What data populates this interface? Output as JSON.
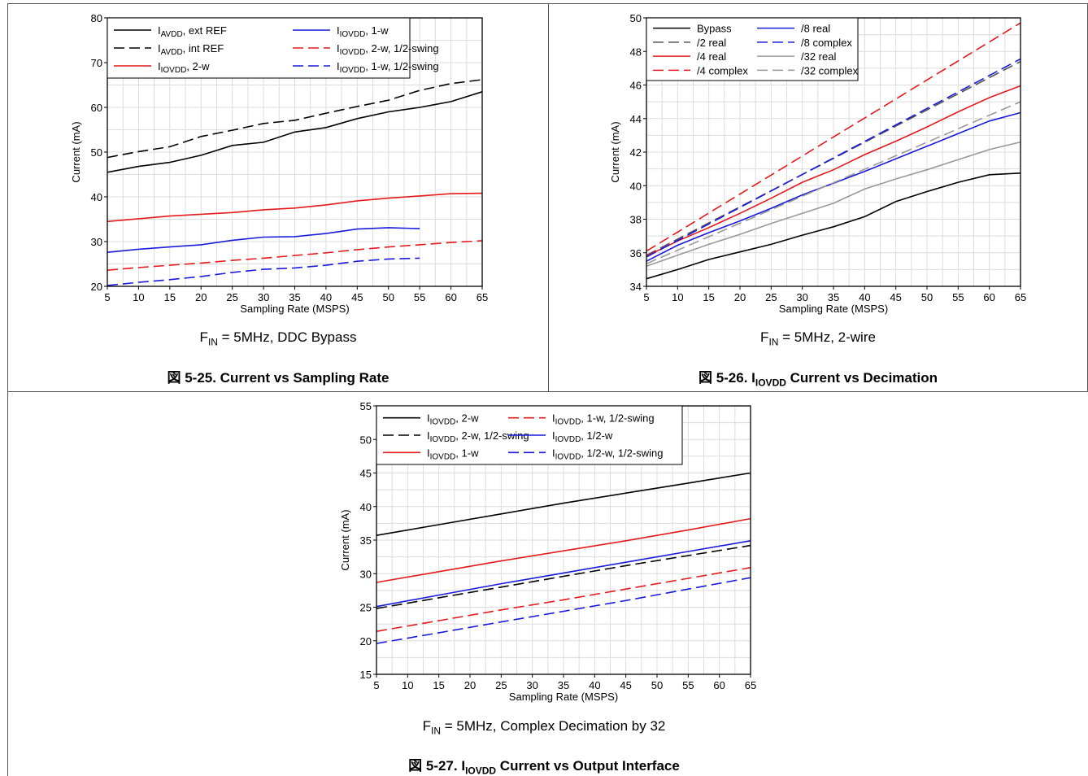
{
  "panels": [
    {
      "condition": {
        "pre": "F",
        "sub": "IN",
        "post": " = 5MHz, DDC Bypass"
      },
      "caption": {
        "pre": "図 5-25. Current vs Sampling Rate",
        "sub": "",
        "post": ""
      }
    },
    {
      "condition": {
        "pre": "F",
        "sub": "IN",
        "post": " = 5MHz, 2-wire"
      },
      "caption": {
        "pre": "図 5-26. I",
        "sub": "IOVDD",
        "post": " Current vs Decimation"
      }
    },
    {
      "condition": {
        "pre": "F",
        "sub": "IN",
        "post": " = 5MHz, Complex Decimation by 32"
      },
      "caption": {
        "pre": "図 5-27. I",
        "sub": "IOVDD",
        "post": " Current vs Output Interface"
      }
    }
  ],
  "chart_data": [
    {
      "type": "line",
      "xlabel": "Sampling Rate (MSPS)",
      "ylabel": "Current (mA)",
      "xlim": [
        5,
        65
      ],
      "ylim": [
        20,
        80
      ],
      "xticks": [
        5,
        10,
        15,
        20,
        25,
        30,
        35,
        40,
        45,
        50,
        55,
        60,
        65
      ],
      "yticks": [
        20,
        30,
        40,
        50,
        60,
        70,
        80
      ],
      "grid": true,
      "legend_position": "top-left",
      "legend_columns": 2,
      "series": [
        {
          "legend": {
            "main": "I",
            "sub": "AVDD",
            "rest": ", ext REF"
          },
          "color": "#000000",
          "dash": false,
          "x": [
            5,
            10,
            15,
            20,
            25,
            30,
            35,
            40,
            45,
            50,
            55,
            60,
            65
          ],
          "y": [
            45.5,
            46.8,
            47.7,
            49.3,
            51.5,
            52.2,
            54.5,
            55.5,
            57.5,
            59,
            60,
            61.3,
            63.5
          ]
        },
        {
          "legend": {
            "main": "I",
            "sub": "AVDD",
            "rest": ", int REF"
          },
          "color": "#000000",
          "dash": true,
          "x": [
            5,
            10,
            15,
            20,
            25,
            30,
            35,
            40,
            45,
            50,
            55,
            60,
            65
          ],
          "y": [
            48.8,
            50.1,
            51.2,
            53.5,
            54.9,
            56.4,
            57.1,
            58.7,
            60.2,
            61.6,
            63.8,
            65.3,
            66.2
          ]
        },
        {
          "legend": {
            "main": "I",
            "sub": "IOVDD",
            "rest": ", 2-w"
          },
          "color": "#e41a1c",
          "dash": false,
          "x": [
            5,
            10,
            15,
            20,
            25,
            30,
            35,
            40,
            45,
            50,
            55,
            60,
            65
          ],
          "y": [
            34.5,
            35.1,
            35.7,
            36.1,
            36.5,
            37.1,
            37.5,
            38.2,
            39.1,
            39.7,
            40.2,
            40.7,
            40.8
          ]
        },
        {
          "legend": {
            "main": "I",
            "sub": "IOVDD",
            "rest": ", 1-w"
          },
          "color": "#1a1adb",
          "dash": false,
          "x": [
            5,
            10,
            15,
            20,
            25,
            30,
            35,
            40,
            45,
            50,
            55
          ],
          "y": [
            27.6,
            28.3,
            28.8,
            29.3,
            30.3,
            31,
            31.1,
            31.8,
            32.8,
            33.1,
            32.9
          ]
        },
        {
          "legend": {
            "main": "I",
            "sub": "IOVDD",
            "rest": ", 2-w, 1/2-swing"
          },
          "color": "#e41a1c",
          "dash": true,
          "x": [
            5,
            10,
            15,
            20,
            25,
            30,
            35,
            40,
            45,
            50,
            55,
            60,
            65
          ],
          "y": [
            23.6,
            24.2,
            24.7,
            25.2,
            25.8,
            26.3,
            26.9,
            27.5,
            28.2,
            28.8,
            29.3,
            29.8,
            30.2
          ]
        },
        {
          "legend": {
            "main": "I",
            "sub": "IOVDD",
            "rest": ", 1-w, 1/2-swing"
          },
          "color": "#1a1adb",
          "dash": true,
          "x": [
            5,
            10,
            15,
            20,
            25,
            30,
            35,
            40,
            45,
            50,
            55
          ],
          "y": [
            20.2,
            20.9,
            21.5,
            22.2,
            23.1,
            23.8,
            24.1,
            24.7,
            25.6,
            26.1,
            26.3
          ]
        }
      ]
    },
    {
      "type": "line",
      "xlabel": "Sampling Rate (MSPS)",
      "ylabel": "Current (mA)",
      "xlim": [
        5,
        65
      ],
      "ylim": [
        34,
        50
      ],
      "xticks": [
        5,
        10,
        15,
        20,
        25,
        30,
        35,
        40,
        45,
        50,
        55,
        60,
        65
      ],
      "yticks": [
        34,
        36,
        38,
        40,
        42,
        44,
        46,
        48,
        50
      ],
      "grid": true,
      "legend_position": "top-left",
      "legend_columns": 2,
      "series": [
        {
          "legend": {
            "main": "Bypass",
            "sub": "",
            "rest": ""
          },
          "color": "#000000",
          "dash": false,
          "x": [
            5,
            10,
            15,
            20,
            25,
            30,
            35,
            40,
            45,
            50,
            55,
            60,
            65
          ],
          "y": [
            34.45,
            35,
            35.6,
            36.05,
            36.5,
            37.05,
            37.55,
            38.15,
            39.05,
            39.65,
            40.2,
            40.65,
            40.75
          ]
        },
        {
          "legend": {
            "main": "/2 real",
            "sub": "",
            "rest": ""
          },
          "color": "#555555",
          "dash": true,
          "x": [
            5,
            65
          ],
          "y": [
            35.85,
            47.4
          ]
        },
        {
          "legend": {
            "main": "/4 real",
            "sub": "",
            "rest": ""
          },
          "color": "#e41a1c",
          "dash": false,
          "x": [
            5,
            10,
            15,
            20,
            25,
            30,
            35,
            40,
            45,
            50,
            55,
            60,
            65
          ],
          "y": [
            35.8,
            36.7,
            37.5,
            38.35,
            39.25,
            40.2,
            40.95,
            41.85,
            42.65,
            43.5,
            44.4,
            45.25,
            45.95
          ]
        },
        {
          "legend": {
            "main": "/4 complex",
            "sub": "",
            "rest": ""
          },
          "color": "#e41a1c",
          "dash": true,
          "x": [
            5,
            65
          ],
          "y": [
            36.1,
            49.7
          ]
        },
        {
          "legend": {
            "main": "/8 real",
            "sub": "",
            "rest": ""
          },
          "color": "#1a1adb",
          "dash": false,
          "x": [
            5,
            10,
            15,
            20,
            25,
            30,
            35,
            40,
            45,
            50,
            55,
            60,
            65
          ],
          "y": [
            35.5,
            36.45,
            37.2,
            37.9,
            38.65,
            39.45,
            40.15,
            40.85,
            41.6,
            42.35,
            43.1,
            43.85,
            44.35
          ]
        },
        {
          "legend": {
            "main": "/8 complex",
            "sub": "",
            "rest": ""
          },
          "color": "#1a1adb",
          "dash": true,
          "x": [
            5,
            65
          ],
          "y": [
            35.75,
            47.55
          ]
        },
        {
          "legend": {
            "main": "/32 real",
            "sub": "",
            "rest": ""
          },
          "color": "#999999",
          "dash": false,
          "x": [
            5,
            10,
            15,
            20,
            25,
            30,
            35,
            40,
            45,
            50,
            55,
            60,
            65
          ],
          "y": [
            35.2,
            35.85,
            36.5,
            37.1,
            37.75,
            38.35,
            38.95,
            39.8,
            40.4,
            40.95,
            41.55,
            42.15,
            42.6
          ]
        },
        {
          "legend": {
            "main": "/32 complex",
            "sub": "",
            "rest": ""
          },
          "color": "#999999",
          "dash": true,
          "x": [
            5,
            65
          ],
          "y": [
            35.35,
            45
          ]
        }
      ]
    },
    {
      "type": "line",
      "xlabel": "Sampling Rate (MSPS)",
      "ylabel": "Current (mA)",
      "xlim": [
        5,
        65
      ],
      "ylim": [
        15,
        55
      ],
      "xticks": [
        5,
        10,
        15,
        20,
        25,
        30,
        35,
        40,
        45,
        50,
        55,
        60,
        65
      ],
      "yticks": [
        15,
        20,
        25,
        30,
        35,
        40,
        45,
        50,
        55
      ],
      "grid": true,
      "legend_position": "top-left",
      "legend_columns": 2,
      "series": [
        {
          "legend": {
            "main": "I",
            "sub": "IOVDD",
            "rest": ", 2-w"
          },
          "color": "#000000",
          "dash": false,
          "x": [
            5,
            15,
            25,
            35,
            45,
            55,
            65
          ],
          "y": [
            35.7,
            37.3,
            38.9,
            40.5,
            42,
            43.5,
            45
          ]
        },
        {
          "legend": {
            "main": "I",
            "sub": "IOVDD",
            "rest": ", 2-w, 1/2-swing"
          },
          "color": "#000000",
          "dash": true,
          "x": [
            5,
            15,
            25,
            35,
            45,
            55,
            65
          ],
          "y": [
            24.8,
            26.4,
            28,
            29.6,
            31.2,
            32.7,
            34.2
          ]
        },
        {
          "legend": {
            "main": "I",
            "sub": "IOVDD",
            "rest": ", 1-w"
          },
          "color": "#e41a1c",
          "dash": false,
          "x": [
            5,
            15,
            25,
            35,
            45,
            55,
            65
          ],
          "y": [
            28.7,
            30.3,
            31.9,
            33.4,
            34.9,
            36.5,
            38.2
          ]
        },
        {
          "legend": {
            "main": "I",
            "sub": "IOVDD",
            "rest": ", 1-w, 1/2-swing"
          },
          "color": "#e41a1c",
          "dash": true,
          "x": [
            5,
            15,
            25,
            35,
            45,
            55,
            65
          ],
          "y": [
            21.4,
            23,
            24.6,
            26.1,
            27.7,
            29.3,
            30.9
          ]
        },
        {
          "legend": {
            "main": "I",
            "sub": "IOVDD",
            "rest": ", 1/2-w"
          },
          "color": "#1a1adb",
          "dash": false,
          "x": [
            5,
            15,
            25,
            35,
            45,
            55,
            65
          ],
          "y": [
            25.1,
            26.8,
            28.5,
            30.1,
            31.7,
            33.3,
            34.9
          ]
        },
        {
          "legend": {
            "main": "I",
            "sub": "IOVDD",
            "rest": ", 1/2-w, 1/2-swing"
          },
          "color": "#1a1adb",
          "dash": true,
          "x": [
            5,
            15,
            25,
            35,
            45,
            55,
            65
          ],
          "y": [
            19.6,
            21.2,
            22.8,
            24.4,
            26,
            27.7,
            29.4
          ]
        }
      ]
    }
  ]
}
